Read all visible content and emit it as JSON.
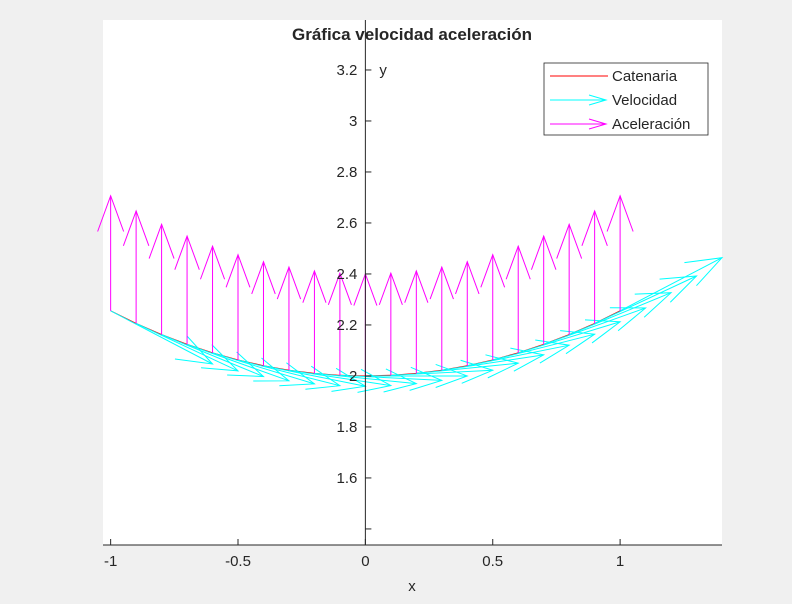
{
  "chart_data": {
    "type": "line",
    "title": "Gráfica velocidad aceleración",
    "xlabel": "x",
    "ylabel": "y",
    "xlim": [
      -1.03,
      1.4
    ],
    "ylim": [
      1.337,
      3.396
    ],
    "xticks": [
      -1,
      -0.5,
      0,
      0.5,
      1
    ],
    "xtick_labels": [
      "-1",
      "-0.5",
      "0",
      "0.5",
      "1"
    ],
    "yticks": [
      1.4,
      1.6,
      1.8,
      2,
      2.2,
      2.4,
      2.6,
      2.8,
      3,
      3.2
    ],
    "ytick_labels": [
      "",
      "1.6",
      "1.8",
      "2",
      "2.2",
      "2.4",
      "2.6",
      "2.8",
      "3",
      "3.2"
    ],
    "grid": false,
    "legend_position": "top-right",
    "legend": [
      "Catenaria",
      "Velocidad",
      "Aceleración"
    ],
    "colors": {
      "catenaria": "#ff0000",
      "velocidad": "#00ffff",
      "aceleracion": "#ff00ff"
    },
    "x": [
      -1,
      -0.9,
      -0.8,
      -0.7,
      -0.6,
      -0.5,
      -0.4,
      -0.3,
      -0.2,
      -0.1,
      0,
      0.1,
      0.2,
      0.3,
      0.4,
      0.5,
      0.6,
      0.7,
      0.8,
      0.9,
      1
    ],
    "y": [
      2.2553,
      2.2059,
      2.1621,
      2.1238,
      2.0907,
      2.0628,
      2.0401,
      2.0225,
      2.01,
      2.0025,
      2.0,
      2.0025,
      2.01,
      2.0225,
      2.0401,
      2.0628,
      2.0907,
      2.1238,
      2.1621,
      2.2059,
      2.2553
    ],
    "velocity": {
      "vx": [
        1,
        1,
        1,
        1,
        1,
        1,
        1,
        1,
        1,
        1,
        1,
        1,
        1,
        1,
        1,
        1,
        1,
        1,
        1,
        1,
        1
      ],
      "vy": [
        -0.5211,
        -0.4653,
        -0.4108,
        -0.3572,
        -0.3045,
        -0.2526,
        -0.2013,
        -0.1506,
        -0.1002,
        -0.05,
        0,
        0.05,
        0.1002,
        0.1506,
        0.2013,
        0.2526,
        0.3045,
        0.3572,
        0.4108,
        0.4653,
        0.5211
      ]
    },
    "acceleration": {
      "ax": [
        0,
        0,
        0,
        0,
        0,
        0,
        0,
        0,
        0,
        0,
        0,
        0,
        0,
        0,
        0,
        0,
        0,
        0,
        0,
        0,
        0
      ],
      "ay": [
        0.5638,
        0.5515,
        0.5405,
        0.531,
        0.5227,
        0.5157,
        0.51,
        0.5056,
        0.5025,
        0.5006,
        0.5,
        0.5006,
        0.5025,
        0.5056,
        0.51,
        0.5157,
        0.5227,
        0.531,
        0.5405,
        0.5515,
        0.5638
      ]
    }
  }
}
